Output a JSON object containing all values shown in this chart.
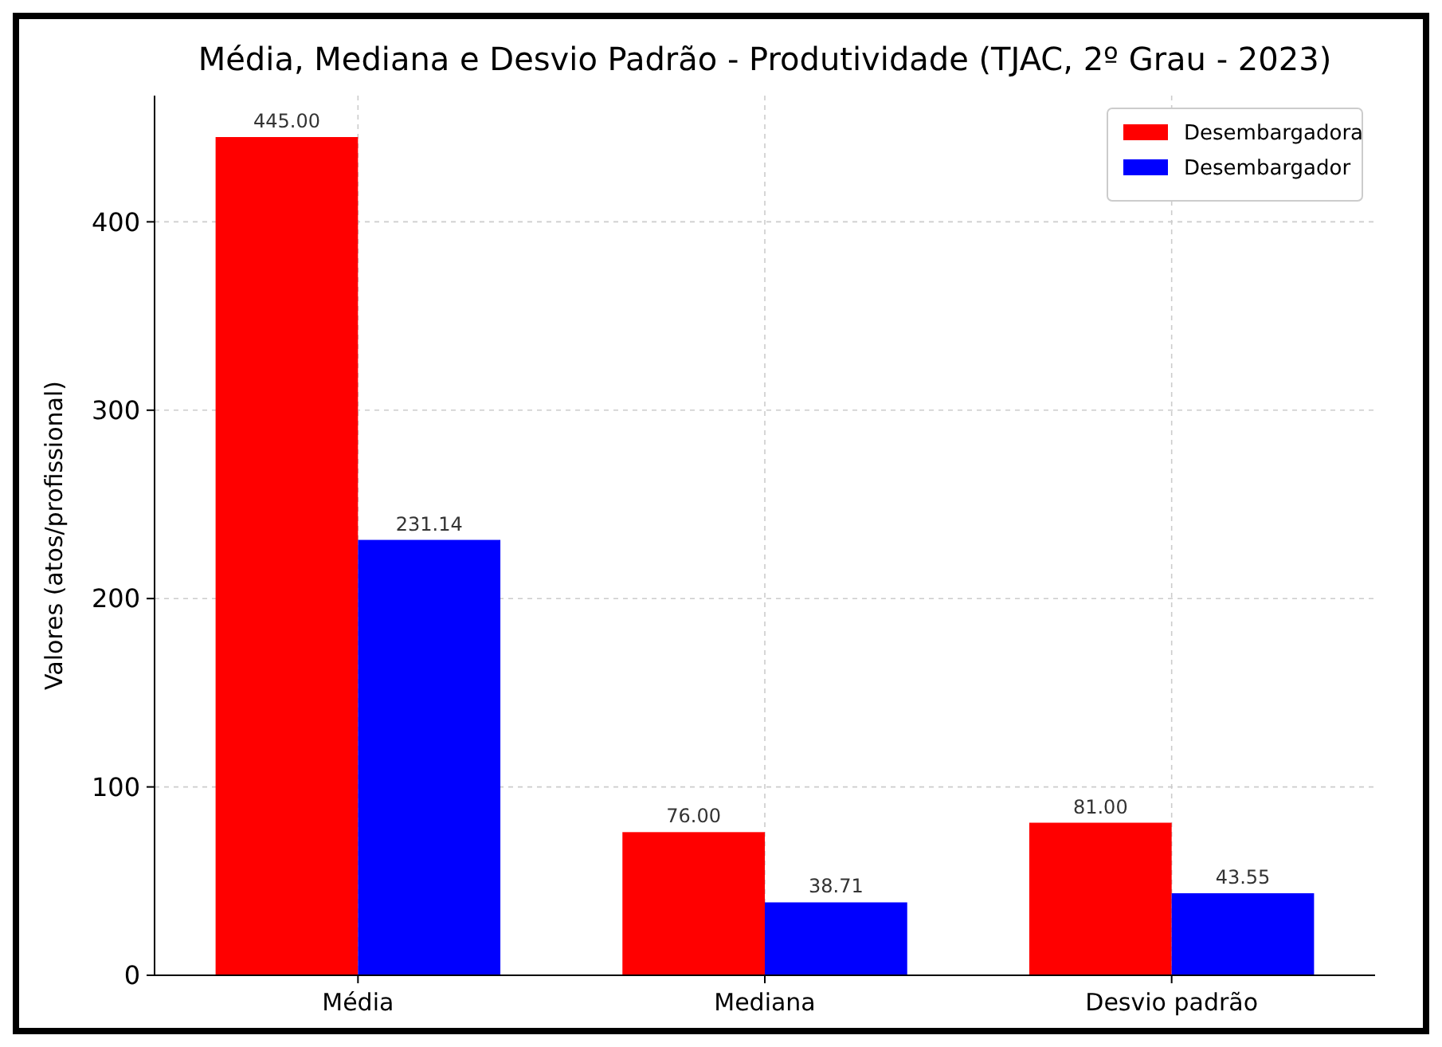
{
  "chart_data": {
    "type": "bar",
    "title": "Média, Mediana e Desvio Padrão - Produtividade (TJAC, 2º Grau - 2023)",
    "ylabel": "Valores (atos/profissional)",
    "categories": [
      "Média",
      "Mediana",
      "Desvio padrão"
    ],
    "series": [
      {
        "name": "Desembargadora",
        "color": "#ff0000",
        "values": [
          445.0,
          76.0,
          81.0
        ]
      },
      {
        "name": "Desembargador",
        "color": "#0000ff",
        "values": [
          231.14,
          38.71,
          43.55
        ]
      }
    ],
    "value_labels": [
      [
        "445.00",
        "76.00",
        "81.00"
      ],
      [
        "231.14",
        "38.71",
        "43.55"
      ]
    ],
    "ylim": [
      0,
      467
    ],
    "yticks": [
      0,
      100,
      200,
      300,
      400
    ],
    "grid": true,
    "legend": "top right"
  }
}
